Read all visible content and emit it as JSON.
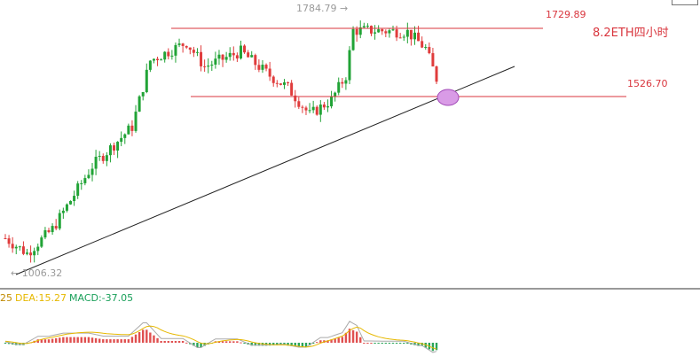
{
  "chart_data": {
    "type": "candlestick",
    "title": "8.2ETH四小时",
    "price_range": [
      960,
      1810
    ],
    "candle_count": 120,
    "up_color": "#21a336",
    "down_color": "#e03c3c",
    "path_points": [
      [
        0,
        1060
      ],
      [
        6,
        1010
      ],
      [
        13,
        1090
      ],
      [
        24,
        1300
      ],
      [
        35,
        1430
      ],
      [
        40,
        1650
      ],
      [
        50,
        1710
      ],
      [
        55,
        1630
      ],
      [
        65,
        1680
      ],
      [
        73,
        1600
      ],
      [
        78,
        1560
      ],
      [
        84,
        1470
      ],
      [
        90,
        1520
      ],
      [
        94,
        1600
      ],
      [
        96,
        1750
      ],
      [
        102,
        1750
      ],
      [
        111,
        1745
      ],
      [
        116,
        1690
      ],
      [
        119,
        1590
      ]
    ],
    "annotations": {
      "high": "1784.79 →",
      "low": "← 1006.32",
      "level_top": "1729.89",
      "level_bottom": "1526.70",
      "note": "8.2ETH四小时"
    },
    "horizontal_levels": [
      1729.89,
      1526.7
    ],
    "trendline": {
      "from": [
        5,
        1006.32
      ],
      "to": [
        155,
        1620
      ]
    },
    "highlight": {
      "at": [
        128,
        1526.7
      ],
      "color": "#cc88dd"
    }
  },
  "macd": {
    "legend": {
      "dif_cut": "25",
      "dea": "DEA:15.27",
      "macd": "MACD:-37.05"
    },
    "colors": {
      "dif_cut": "#c08a00",
      "dea": "#e6b800",
      "macd": "#1aa05a",
      "pos": "#e05050",
      "neg": "#2aa55a"
    }
  },
  "icons": [
    "corner-box-icon"
  ]
}
